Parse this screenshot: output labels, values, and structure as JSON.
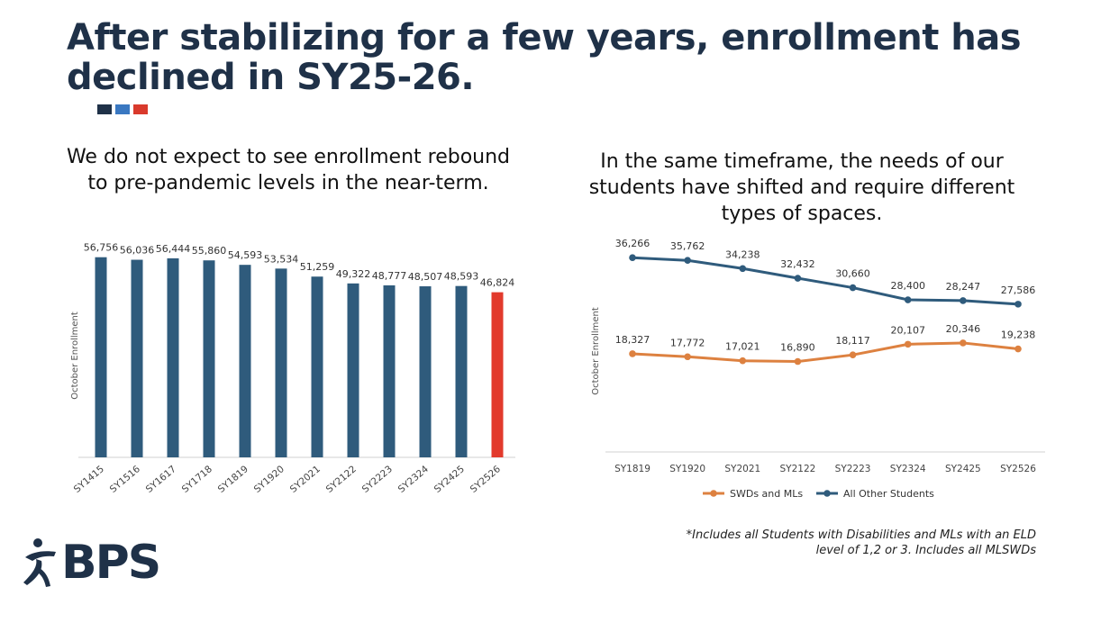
{
  "title": "After stabilizing for a few years, enrollment has declined in SY25-26.",
  "colors": {
    "navy": "#1f3148",
    "bar": "#2f5b7c",
    "accent_red": "#e23a2c",
    "orange": "#dd8140",
    "blue_sq": "#3a78c1",
    "red_sq": "#d93a2c"
  },
  "left_panel": {
    "subtitle": "We do not expect to see enrollment rebound to pre-pandemic levels in the near-term."
  },
  "right_panel": {
    "subtitle": "In the same timeframe, the needs of our students have shifted and require different types of spaces."
  },
  "footnote": {
    "line1": "*Includes all Students with Disabilities and MLs with an ELD",
    "line2": "level of 1,2 or 3.  Includes all MLSWDs"
  },
  "logo": {
    "text": "BPS",
    "icon": "runner-figure-icon"
  },
  "chart_data": [
    {
      "type": "bar",
      "title": "",
      "xlabel": "",
      "ylabel": "October Enrollment",
      "categories": [
        "SY1415",
        "SY1516",
        "SY1617",
        "SY1718",
        "SY1819",
        "SY1920",
        "SY2021",
        "SY2122",
        "SY2223",
        "SY2324",
        "SY2425",
        "SY2526"
      ],
      "values": [
        56756,
        56036,
        56444,
        55860,
        54593,
        53534,
        51259,
        49322,
        48777,
        48507,
        48593,
        46824
      ],
      "labels": [
        "56,756",
        "56,036",
        "56,444",
        "55,860",
        "54,593",
        "53,534",
        "51,259",
        "49,322",
        "48,777",
        "48,507",
        "48,593",
        "46,824"
      ],
      "highlight_index": 11,
      "ylim": [
        0,
        60000
      ],
      "grid": false
    },
    {
      "type": "line",
      "title": "",
      "xlabel": "",
      "ylabel": "October Enrollment",
      "categories": [
        "SY1819",
        "SY1920",
        "SY2021",
        "SY2122",
        "SY2223",
        "SY2324",
        "SY2425",
        "SY2526"
      ],
      "series": [
        {
          "name": "SWDs and MLs",
          "values": [
            18327,
            17772,
            17021,
            16890,
            18117,
            20107,
            20346,
            19238
          ],
          "labels": [
            "18,327",
            "17,772",
            "17,021",
            "16,890",
            "18,117",
            "20,107",
            "20,346",
            "19,238"
          ]
        },
        {
          "name": "All Other Students",
          "values": [
            36266,
            35762,
            34238,
            32432,
            30660,
            28400,
            28247,
            27586
          ],
          "labels": [
            "36,266",
            "35,762",
            "34,238",
            "32,432",
            "30,660",
            "28,400",
            "28,247",
            "27,586"
          ]
        }
      ],
      "ylim": [
        0,
        40000
      ],
      "legend": "bottom",
      "grid": false
    }
  ]
}
